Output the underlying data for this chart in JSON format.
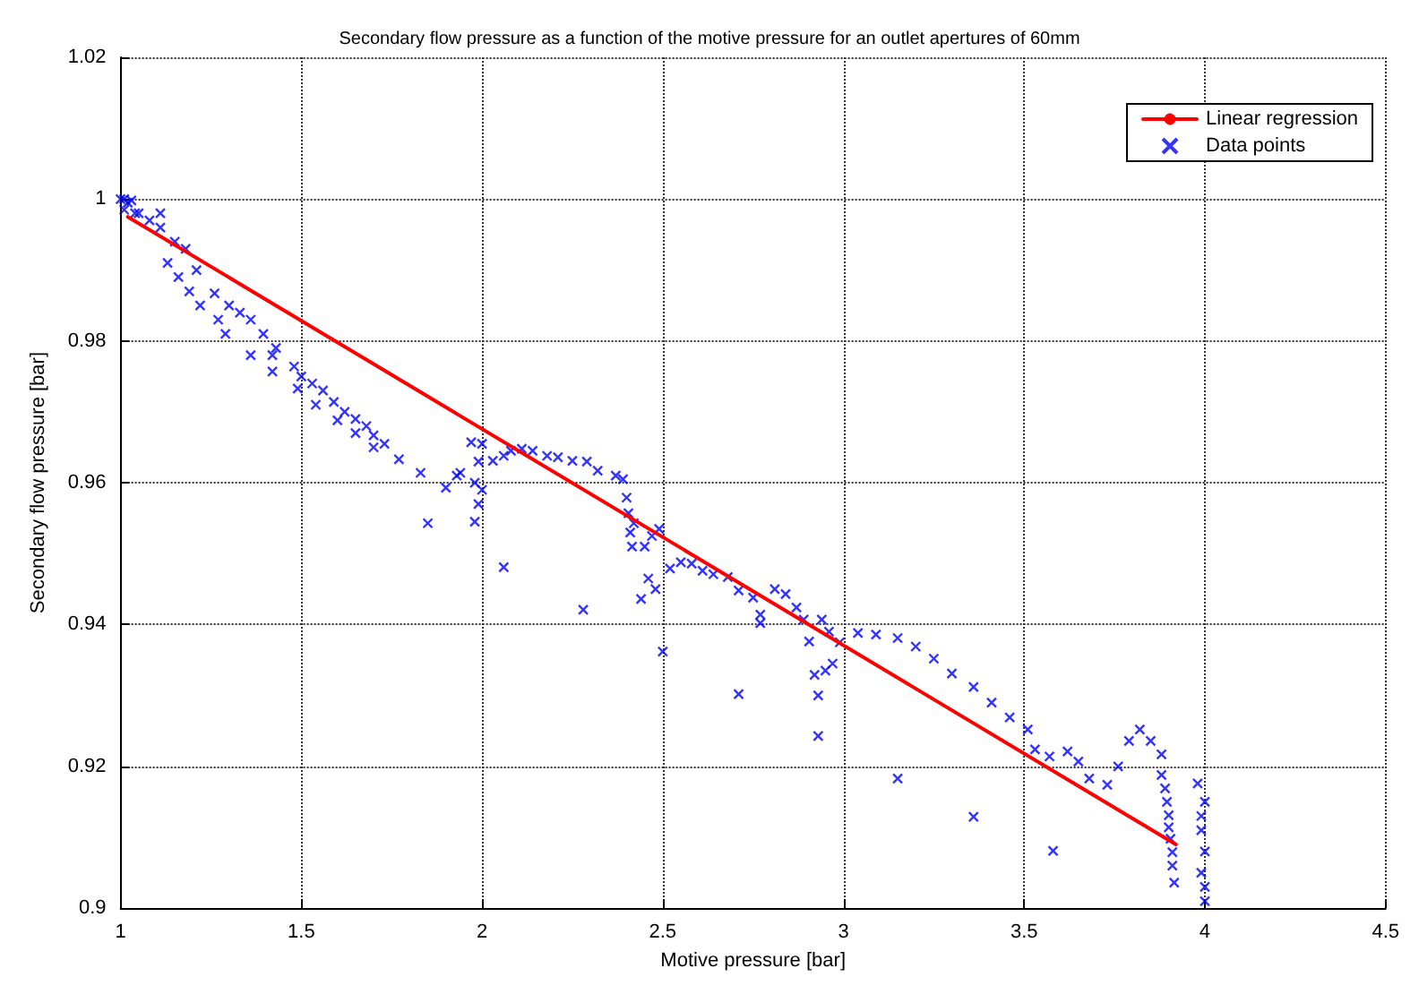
{
  "chart_data": {
    "type": "scatter",
    "title": "Secondary flow pressure as a function of the motive pressure for an outlet apertures of 60mm",
    "xlabel": "Motive pressure [bar]",
    "ylabel": "Secondary flow pressure [bar]",
    "xlim": [
      1,
      4.5
    ],
    "xticks": [
      1,
      1.5,
      2,
      2.5,
      3,
      3.5,
      4,
      4.5
    ],
    "ylim": [
      0.9,
      1.02
    ],
    "yticks": [
      0.9,
      0.92,
      0.94,
      0.96,
      0.98,
      1,
      1.02
    ],
    "grid": true,
    "legend": "top right",
    "series": [
      {
        "name": "Linear regression",
        "type": "line",
        "color": "#ff0000",
        "marker": "none",
        "line_style": "solid",
        "x": [
          1.02,
          3.92
        ],
        "values": [
          0.9975,
          0.909
        ]
      },
      {
        "name": "Data points",
        "color": "#0000ff",
        "marker": "cross",
        "x": [
          1.0,
          1.01,
          1.02,
          1.03,
          1.01,
          1.04,
          1.05,
          1.08,
          1.11,
          1.11,
          1.15,
          1.18,
          1.21,
          1.26,
          1.3,
          1.33,
          1.36,
          1.395,
          1.42,
          1.43,
          1.13,
          1.16,
          1.19,
          1.22,
          1.27,
          1.29,
          1.36,
          1.42,
          1.48,
          1.5,
          1.53,
          1.56,
          1.59,
          1.62,
          1.65,
          1.68,
          1.7,
          1.73,
          1.49,
          1.54,
          1.6,
          1.65,
          1.7,
          1.77,
          1.83,
          1.9,
          1.93,
          1.94,
          1.97,
          1.98,
          1.98,
          1.99,
          1.99,
          2.0,
          2.0,
          1.85,
          2.03,
          2.06,
          2.08,
          2.11,
          2.14,
          2.18,
          2.21,
          2.25,
          2.29,
          2.32,
          2.37,
          2.39,
          2.4,
          2.405,
          2.41,
          2.415,
          2.42,
          2.44,
          2.45,
          2.46,
          2.47,
          2.48,
          2.49,
          2.06,
          2.28,
          2.5,
          2.71,
          2.52,
          2.55,
          2.58,
          2.61,
          2.64,
          2.68,
          2.71,
          2.75,
          2.77,
          2.77,
          2.81,
          2.84,
          2.87,
          2.89,
          2.905,
          2.92,
          2.93,
          2.94,
          2.95,
          2.96,
          2.97,
          2.99,
          2.93,
          3.04,
          3.09,
          3.15,
          3.2,
          3.25,
          3.3,
          3.36,
          3.41,
          3.46,
          3.51,
          3.53,
          3.57,
          3.62,
          3.65,
          3.68,
          3.73,
          3.76,
          3.79,
          3.82,
          3.85,
          3.88,
          3.88,
          3.89,
          3.895,
          3.9,
          3.9,
          3.905,
          3.91,
          3.91,
          3.915,
          3.15,
          3.36,
          3.58,
          3.98,
          3.99,
          3.99,
          4.0,
          4.0,
          4.0,
          3.99,
          4.0
        ],
        "values": [
          1.0,
          1.0,
          0.9995,
          0.9998,
          0.9985,
          0.998,
          0.998,
          0.997,
          0.998,
          0.996,
          0.994,
          0.993,
          0.99,
          0.9867,
          0.985,
          0.984,
          0.983,
          0.981,
          0.978,
          0.979,
          0.991,
          0.989,
          0.987,
          0.985,
          0.983,
          0.981,
          0.978,
          0.9757,
          0.9764,
          0.975,
          0.974,
          0.973,
          0.9714,
          0.97,
          0.969,
          0.968,
          0.9667,
          0.9655,
          0.9733,
          0.971,
          0.9688,
          0.967,
          0.965,
          0.9633,
          0.9614,
          0.9593,
          0.961,
          0.9614,
          0.9657,
          0.96,
          0.9545,
          0.963,
          0.957,
          0.9655,
          0.959,
          0.9543,
          0.9631,
          0.9638,
          0.9645,
          0.9648,
          0.9645,
          0.9638,
          0.9636,
          0.9631,
          0.963,
          0.9617,
          0.961,
          0.9605,
          0.9579,
          0.9557,
          0.953,
          0.951,
          0.9543,
          0.9436,
          0.951,
          0.9465,
          0.9525,
          0.945,
          0.9535,
          0.9481,
          0.9421,
          0.9362,
          0.9302,
          0.9479,
          0.9488,
          0.9486,
          0.9476,
          0.9471,
          0.9467,
          0.9448,
          0.9438,
          0.9414,
          0.9402,
          0.945,
          0.9443,
          0.9424,
          0.9407,
          0.9376,
          0.9329,
          0.93,
          0.9407,
          0.9335,
          0.939,
          0.9345,
          0.9375,
          0.9243,
          0.9388,
          0.9386,
          0.9381,
          0.9369,
          0.9352,
          0.9331,
          0.9312,
          0.929,
          0.9269,
          0.9252,
          0.9224,
          0.9214,
          0.9221,
          0.9207,
          0.9183,
          0.9174,
          0.92,
          0.9236,
          0.9252,
          0.9236,
          0.9217,
          0.9188,
          0.9169,
          0.915,
          0.9131,
          0.9114,
          0.9098,
          0.9079,
          0.906,
          0.9036,
          0.9183,
          0.9129,
          0.9081,
          0.9176,
          0.911,
          0.905,
          0.915,
          0.908,
          0.901,
          0.913,
          0.903
        ]
      }
    ]
  }
}
